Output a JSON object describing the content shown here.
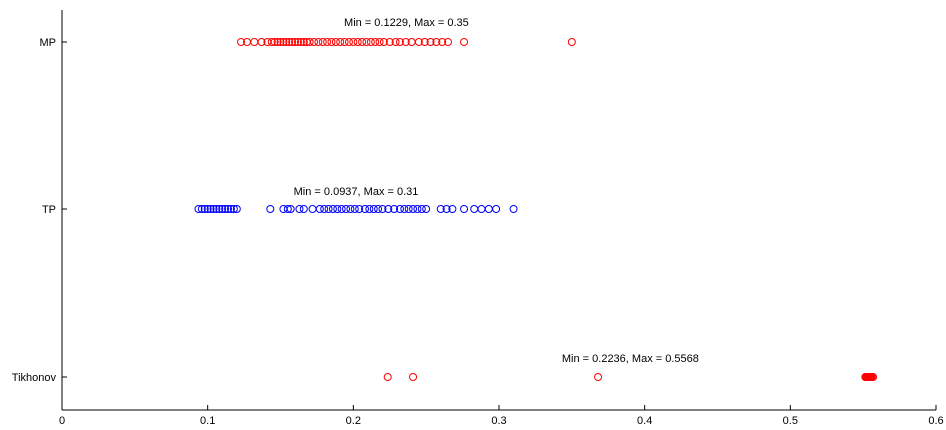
{
  "chart_data": {
    "type": "scatter",
    "title": "",
    "xlabel": "",
    "ylabel": "",
    "xlim": [
      0,
      0.6
    ],
    "x_ticks": [
      "0",
      "0.1",
      "0.2",
      "0.3",
      "0.4",
      "0.5",
      "0.6"
    ],
    "categories": [
      "MP",
      "TP",
      "Tikhonov"
    ],
    "grid": false,
    "legend": "none",
    "series": [
      {
        "category": "MP",
        "color": "#ff0000",
        "annotation": "Min = 0.1229, Max = 0.35",
        "x": [
          0.1229,
          0.127,
          0.132,
          0.137,
          0.141,
          0.144,
          0.146,
          0.148,
          0.15,
          0.152,
          0.154,
          0.156,
          0.158,
          0.16,
          0.162,
          0.164,
          0.166,
          0.168,
          0.17,
          0.173,
          0.176,
          0.179,
          0.182,
          0.185,
          0.188,
          0.191,
          0.194,
          0.197,
          0.2,
          0.203,
          0.206,
          0.209,
          0.212,
          0.215,
          0.218,
          0.221,
          0.225,
          0.229,
          0.232,
          0.236,
          0.24,
          0.245,
          0.249,
          0.253,
          0.257,
          0.261,
          0.265,
          0.276,
          0.35
        ]
      },
      {
        "category": "TP",
        "color": "#0000ff",
        "annotation": "Min = 0.0937, Max = 0.31",
        "x": [
          0.0937,
          0.096,
          0.098,
          0.1,
          0.102,
          0.104,
          0.106,
          0.108,
          0.11,
          0.112,
          0.114,
          0.116,
          0.118,
          0.12,
          0.143,
          0.152,
          0.155,
          0.157,
          0.163,
          0.166,
          0.172,
          0.177,
          0.18,
          0.183,
          0.186,
          0.189,
          0.192,
          0.195,
          0.198,
          0.201,
          0.204,
          0.208,
          0.211,
          0.214,
          0.217,
          0.22,
          0.224,
          0.228,
          0.232,
          0.235,
          0.238,
          0.241,
          0.244,
          0.247,
          0.25,
          0.26,
          0.264,
          0.268,
          0.276,
          0.283,
          0.288,
          0.293,
          0.298,
          0.31
        ]
      },
      {
        "category": "Tikhonov",
        "color": "#ff0000",
        "annotation": "Min = 0.2236, Max = 0.5568",
        "x": [
          0.2236,
          0.241,
          0.368,
          0.5515,
          0.552,
          0.5525,
          0.553,
          0.5535,
          0.554,
          0.5545,
          0.555,
          0.5555,
          0.556,
          0.5568
        ]
      }
    ]
  }
}
